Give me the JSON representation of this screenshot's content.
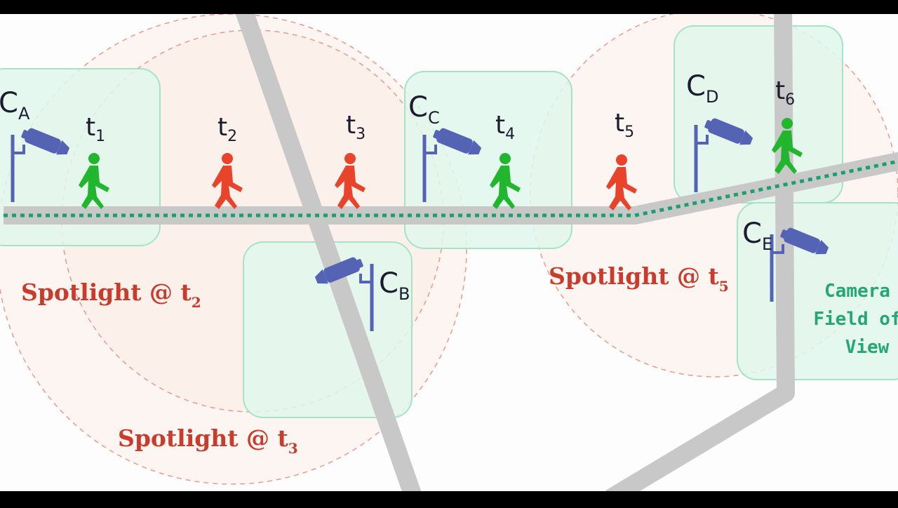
{
  "colors": {
    "background": "#fdfdfd",
    "letterbox": "#000000",
    "road": "#c8c8c8",
    "fov_fill": "#e0f7ec",
    "fov_stroke": "#a6e3c6",
    "spotlight_fill": "#fdeeea",
    "spotlight_stroke": "#e99a8e",
    "camera": "#5563b4",
    "person_detected": "#22b62f",
    "person_undetected": "#e8442c",
    "trajectory": "#1aa06e",
    "spotlight_text": "#c93c2b",
    "fov_text": "#25a775"
  },
  "cameras": [
    {
      "id": "A",
      "base": "C",
      "sub": "A",
      "icon": "security-camera-icon"
    },
    {
      "id": "B",
      "base": "C",
      "sub": "B",
      "icon": "security-camera-icon"
    },
    {
      "id": "C",
      "base": "C",
      "sub": "C",
      "icon": "security-camera-icon"
    },
    {
      "id": "D",
      "base": "C",
      "sub": "D",
      "icon": "security-camera-icon"
    },
    {
      "id": "E",
      "base": "C",
      "sub": "E",
      "icon": "security-camera-icon"
    }
  ],
  "timesteps": [
    {
      "base": "t",
      "sub": "1",
      "status": "detected",
      "icon": "walking-person-icon"
    },
    {
      "base": "t",
      "sub": "2",
      "status": "undetected",
      "icon": "walking-person-icon"
    },
    {
      "base": "t",
      "sub": "3",
      "status": "undetected",
      "icon": "walking-person-icon"
    },
    {
      "base": "t",
      "sub": "4",
      "status": "detected",
      "icon": "walking-person-icon"
    },
    {
      "base": "t",
      "sub": "5",
      "status": "undetected",
      "icon": "walking-person-icon"
    },
    {
      "base": "t",
      "sub": "6",
      "status": "detected",
      "icon": "walking-person-icon"
    }
  ],
  "spotlights": [
    {
      "prefix": "Spotlight @ t",
      "sub": "2"
    },
    {
      "prefix": "Spotlight @ t",
      "sub": "3"
    },
    {
      "prefix": "Spotlight @ t",
      "sub": "5"
    }
  ],
  "fov_label": {
    "line1": "Camera",
    "line2": "Field of",
    "line3": "View"
  }
}
